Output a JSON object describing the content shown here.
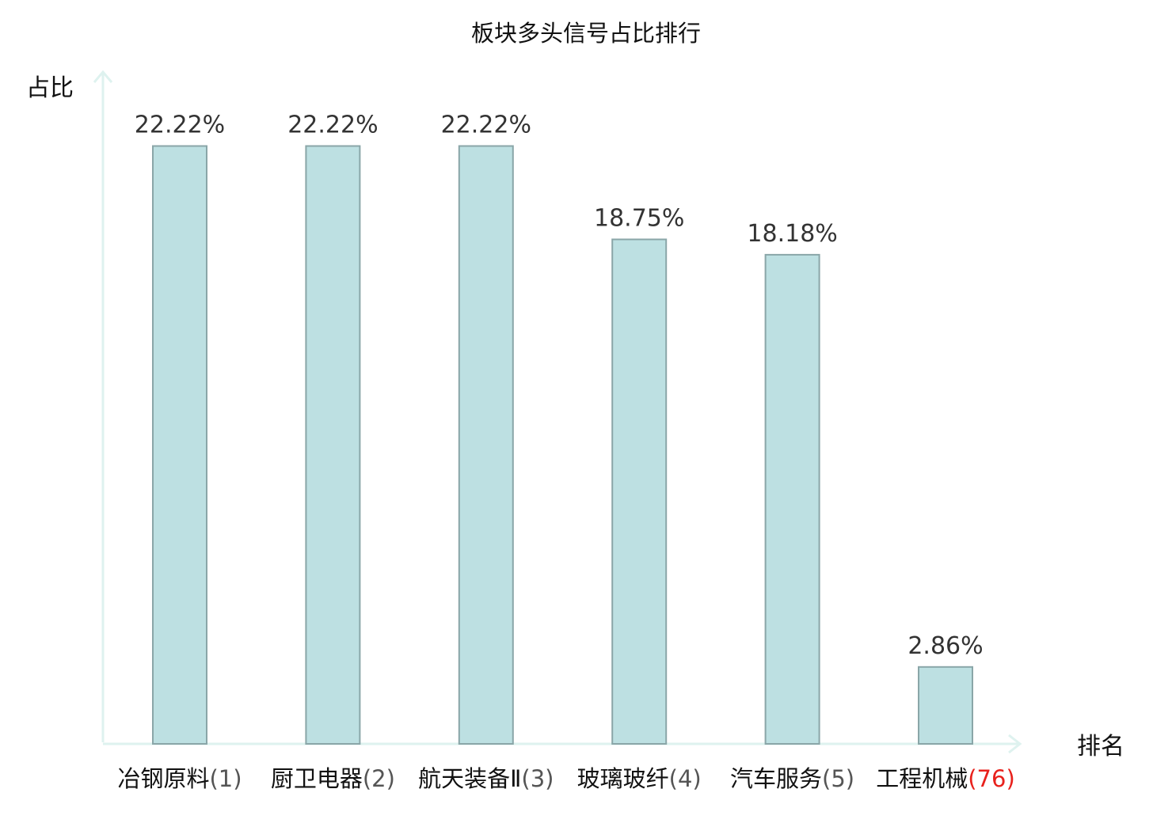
{
  "chart_data": {
    "type": "bar",
    "title": "板块多头信号占比排行",
    "ylabel": "占比",
    "xlabel": "排名",
    "categories": [
      {
        "name": "冶钢原料",
        "rank": "(1)",
        "highlight": false
      },
      {
        "name": "厨卫电器",
        "rank": "(2)",
        "highlight": false
      },
      {
        "name": "航天装备Ⅱ",
        "rank": "(3)",
        "highlight": false
      },
      {
        "name": "玻璃玻纤",
        "rank": "(4)",
        "highlight": false
      },
      {
        "name": "汽车服务",
        "rank": "(5)",
        "highlight": false
      },
      {
        "name": "工程机械",
        "rank": "(76)",
        "highlight": true
      }
    ],
    "values": [
      22.22,
      22.22,
      22.22,
      18.75,
      18.18,
      2.86
    ],
    "value_labels": [
      "22.22%",
      "22.22%",
      "22.22%",
      "18.75%",
      "18.18%",
      "2.86%"
    ],
    "ylim": [
      0,
      26
    ],
    "grid": false,
    "legend": "none",
    "colors": {
      "bar_fill": "#bde0e2",
      "bar_stroke": "#8aa6a8",
      "axis": "#def2ef",
      "text": "#111111",
      "value_text": "#333333",
      "highlight_text": "#e8211c"
    }
  }
}
